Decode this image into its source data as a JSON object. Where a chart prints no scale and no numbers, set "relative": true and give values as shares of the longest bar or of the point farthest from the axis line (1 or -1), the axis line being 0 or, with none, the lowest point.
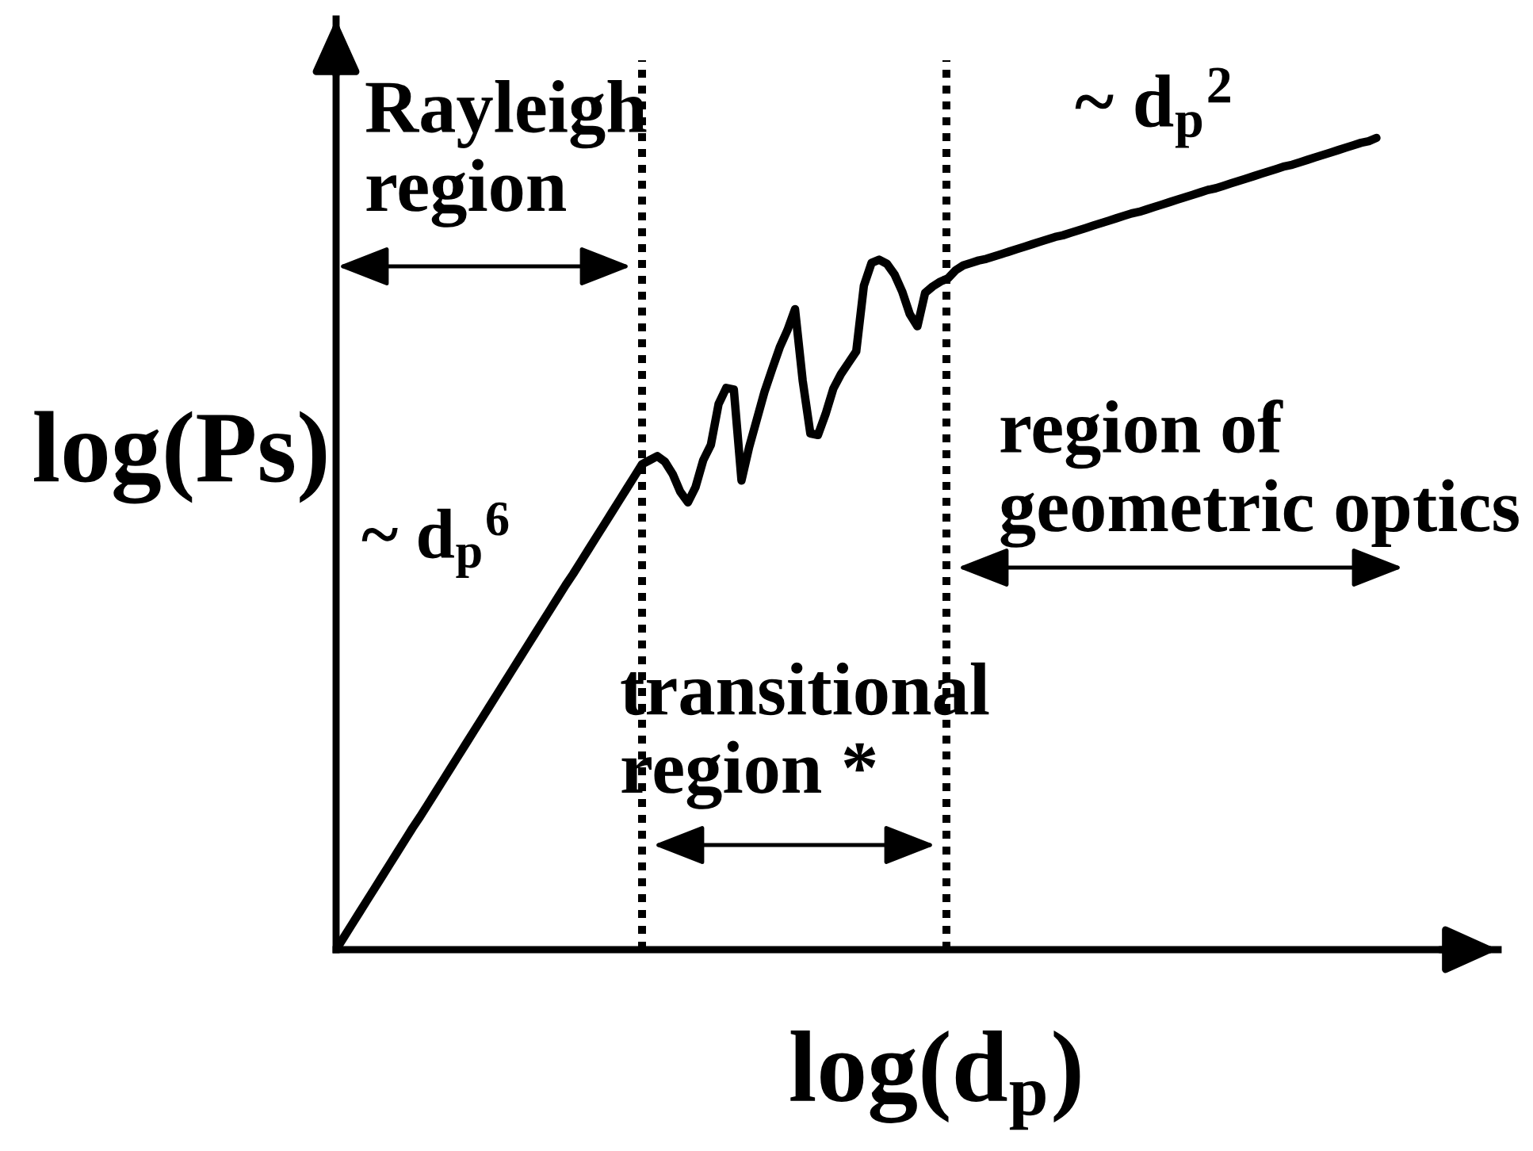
{
  "chart_data": {
    "type": "line",
    "relative": true,
    "xlabel": "log(d$_{p}$)",
    "ylabel": "log(Ps)",
    "categories": [
      null,
      null,
      null,
      null,
      null,
      null,
      null,
      null,
      null,
      null,
      null,
      null,
      null,
      null,
      null,
      null,
      null,
      null,
      null,
      null,
      null,
      null,
      null,
      null,
      null,
      null,
      null,
      null,
      null,
      null,
      null,
      null,
      null,
      null,
      null,
      null,
      null,
      null,
      null,
      null,
      null,
      null,
      null,
      null,
      null,
      null,
      null,
      null,
      null,
      null,
      null,
      null,
      null,
      null,
      null,
      null,
      null,
      null,
      null,
      null,
      null,
      null,
      null,
      null,
      null,
      null,
      null,
      null,
      null,
      null,
      null,
      null,
      null,
      null,
      null,
      null,
      null,
      null,
      null,
      null,
      null,
      null,
      null,
      null,
      null,
      null,
      null,
      null,
      null,
      null,
      null,
      null,
      null,
      null,
      null,
      null,
      null,
      null,
      null,
      null,
      null,
      null,
      null,
      null,
      null,
      null,
      null,
      null,
      null,
      null,
      null,
      null,
      null,
      null,
      null,
      null,
      null,
      null,
      null,
      null,
      null,
      null,
      null,
      null,
      null,
      null,
      null,
      null,
      null,
      null,
      null,
      null,
      null,
      null,
      null,
      null,
      null
    ],
    "color": "#000000",
    "values": [
      0,
      0.015,
      0.03,
      0.045,
      0.06,
      0.075,
      0.09,
      0.105,
      0.12,
      0.135,
      0.15,
      0.164,
      0.179,
      0.194,
      0.209,
      0.224,
      0.239,
      0.254,
      0.269,
      0.284,
      0.299,
      0.314,
      0.329,
      0.344,
      0.359,
      0.374,
      0.389,
      0.404,
      0.419,
      0.434,
      0.449,
      0.463,
      0.478,
      0.493,
      0.508,
      0.523,
      0.538,
      0.553,
      0.568,
      0.583,
      0.598,
      0.603,
      0.608,
      0.601,
      0.586,
      0.564,
      0.551,
      0.57,
      0.603,
      0.622,
      0.672,
      0.692,
      0.69,
      0.578,
      0.619,
      0.653,
      0.687,
      0.715,
      0.742,
      0.763,
      0.789,
      0.701,
      0.636,
      0.634,
      0.66,
      0.691,
      0.709,
      0.723,
      0.737,
      0.818,
      0.846,
      0.85,
      0.845,
      0.832,
      0.811,
      0.783,
      0.768,
      0.809,
      0.817,
      0.823,
      0.827,
      0.837,
      0.843,
      0.846,
      0.849,
      0.851,
      0.854,
      0.857,
      0.86,
      0.863,
      0.866,
      0.869,
      0.872,
      0.875,
      0.878,
      0.88,
      0.883,
      0.886,
      0.889,
      0.892,
      0.895,
      0.898,
      0.901,
      0.904,
      0.907,
      0.909,
      0.912,
      0.915,
      0.918,
      0.921,
      0.924,
      0.927,
      0.93,
      0.933,
      0.936,
      0.938,
      0.941,
      0.944,
      0.947,
      0.95,
      0.953,
      0.956,
      0.959,
      0.962,
      0.965,
      0.967,
      0.97,
      0.973,
      0.976,
      0.979,
      0.982,
      0.985,
      0.988,
      0.991,
      0.994,
      0.996,
      1.0
    ],
    "annotations": [
      "Rayleigh\nregion",
      "transitional\nregion *",
      "region of\ngeometric optics",
      "~ d$_{p}$$^{6}$",
      "~ d$_{p}$$^{2}$"
    ]
  }
}
